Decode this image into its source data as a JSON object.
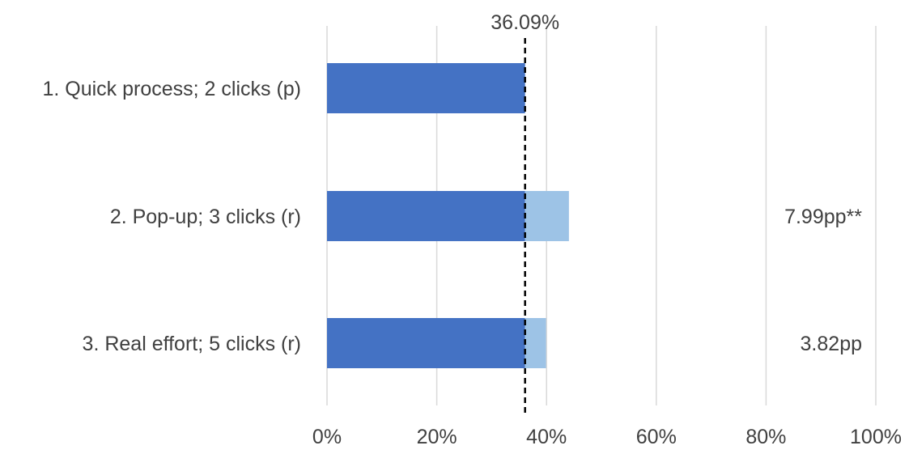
{
  "chart_data": {
    "type": "bar",
    "orientation": "horizontal",
    "stacked": true,
    "categories": [
      "1. Quick process; 2 clicks (p)",
      "2. Pop-up; 3 clicks (r)",
      "3. Real effort; 5 clicks (r)"
    ],
    "series": [
      {
        "values": [
          36.09,
          36.09,
          36.09
        ],
        "color": "#4472c4"
      },
      {
        "values": [
          0,
          7.99,
          3.82
        ],
        "color": "#9dc3e6"
      }
    ],
    "data_labels": [
      "",
      "7.99pp**",
      "3.82pp"
    ],
    "reference_line": {
      "value": 36.09,
      "label": "36.09%",
      "style": "dashed"
    },
    "x_ticks": [
      "0%",
      "20%",
      "40%",
      "60%",
      "80%",
      "100%"
    ],
    "xlim": [
      0,
      100
    ],
    "grid": "vertical",
    "legend": "none"
  }
}
